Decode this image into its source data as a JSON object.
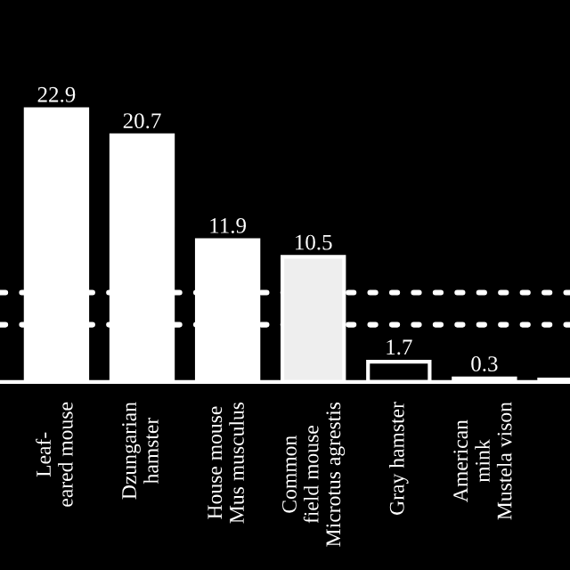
{
  "chart_data": {
    "type": "bar",
    "categories": [
      "Leaf-\neared mouse",
      "Dzungarian\nhamster",
      "House mouse\nMus musculus",
      "Common\nfield mouse\nMicrotus agrestis",
      "Gray hamster",
      "American\nmink\nMustela vison",
      null
    ],
    "values": [
      22.9,
      20.7,
      11.9,
      10.5,
      1.7,
      0.3,
      0.2
    ],
    "value_labels": [
      "22.9",
      "20.7",
      "11.9",
      "10.5",
      "1.7",
      "0.3",
      null
    ],
    "colors": [
      "#ffffff",
      "#ffffff",
      "#ffffff",
      "#eeeeee",
      "#000000",
      "#000000",
      "#000000"
    ],
    "ref_lines": [
      {
        "axis": "y",
        "value": 7.5,
        "color": "#ffffff",
        "line_style": "dotted"
      },
      {
        "axis": "y",
        "value": 4.8,
        "color": "#ffffff",
        "line_style": "dotted"
      }
    ],
    "grid": false,
    "legend": false
  }
}
